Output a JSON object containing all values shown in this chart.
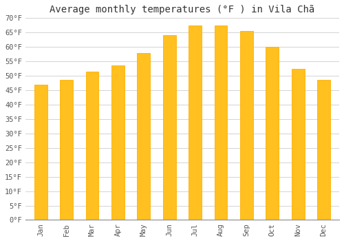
{
  "title": "Average monthly temperatures (°F ) in Vila Chã",
  "months": [
    "Jan",
    "Feb",
    "Mar",
    "Apr",
    "May",
    "Jun",
    "Jul",
    "Aug",
    "Sep",
    "Oct",
    "Nov",
    "Dec"
  ],
  "values": [
    47,
    48.5,
    51.5,
    53.5,
    58,
    64,
    67.5,
    67.5,
    65.5,
    60,
    52.5,
    48.5
  ],
  "bar_color": "#FFC020",
  "bar_edge_color": "#FFB000",
  "background_color": "#ffffff",
  "grid_color": "#cccccc",
  "text_color": "#555555",
  "ylim": [
    0,
    70
  ],
  "ytick_step": 5,
  "title_fontsize": 10,
  "tick_fontsize": 7.5,
  "font_family": "monospace",
  "bar_width": 0.5
}
